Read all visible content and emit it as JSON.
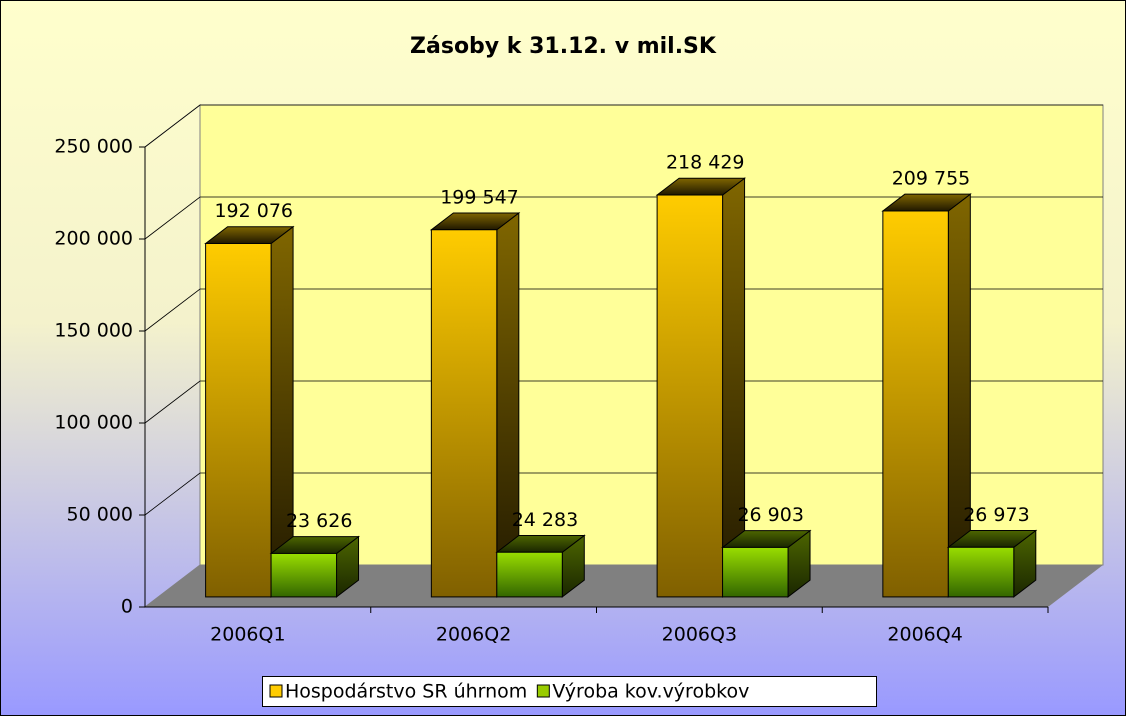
{
  "chart_data": {
    "type": "bar",
    "title": "Zásoby k 31.12.  v mil.SK",
    "categories": [
      "2006Q1",
      "2006Q2",
      "2006Q3",
      "2006Q4"
    ],
    "series": [
      {
        "name": "Hospodárstvo SR úhrnom",
        "color": "#ffcc00",
        "values": [
          192076,
          199547,
          218429,
          209755
        ],
        "value_labels": [
          "192 076",
          "199 547",
          "218 429",
          "209 755"
        ]
      },
      {
        "name": "Výroba kov.výrobkov",
        "color": "#99cc00",
        "values": [
          23626,
          24283,
          26903,
          26973
        ],
        "value_labels": [
          "23 626",
          "24 283",
          "26 903",
          "26 973"
        ]
      }
    ],
    "ylim": [
      0,
      250000
    ],
    "yticks": [
      0,
      {
        "value": 50000,
        "label": "50 000"
      },
      {
        "value": 100000,
        "label": "100 000"
      },
      {
        "value": 150000,
        "label": "150 000"
      },
      {
        "value": 200000,
        "label": "200 000"
      },
      {
        "value": 250000,
        "label": "250 000"
      }
    ],
    "grid": true,
    "legend": "bottom"
  }
}
